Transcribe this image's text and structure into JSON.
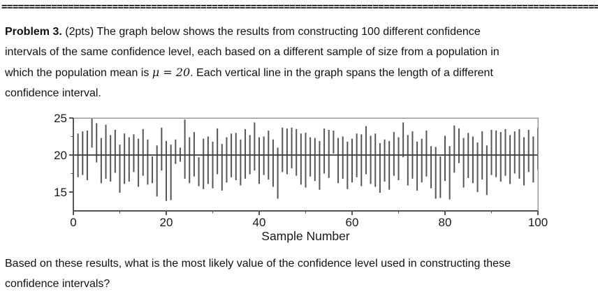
{
  "document": {
    "divider": "==============================================================================================================",
    "problem": {
      "label": "Problem 3.",
      "text_before_mu": " (2pts) The graph below shows the results from constructing 100 different confidence\nintervals of the same confidence level, each based on a different sample of size from a population in\nwhich the population mean is ",
      "mu_expression": "μ = 20",
      "text_after_mu": ". Each vertical line in the graph spans the length of a different\nconfidence interval.",
      "points": "2pts"
    },
    "question": "Based on these results, what is the most likely value of the confidence level used in constructing these\nconfidence intervals?"
  },
  "chart_data": {
    "type": "scatter",
    "mark": "vertical-interval",
    "title": "",
    "xlabel": "Sample Number",
    "ylabel": "",
    "xlim": [
      0,
      100
    ],
    "ylim": [
      12.45,
      25
    ],
    "xticks": [
      0,
      20,
      40,
      60,
      80,
      100
    ],
    "xticks_minor": [
      10,
      30,
      50,
      70,
      90
    ],
    "yticks": [
      15,
      20,
      25
    ],
    "yticks_minor": [
      17.5,
      22.5
    ],
    "grid": false,
    "legend": false,
    "mean_line": 20,
    "n_intervals": 100,
    "colors": {
      "interval": "#555555",
      "mean_line": "#3a3a3a",
      "frame": "#999999",
      "axis": "#555555",
      "text": "#1a1a1a"
    },
    "intervals": [
      [
        17.0,
        22.9
      ],
      [
        17.3,
        23.2
      ],
      [
        16.6,
        23.3
      ],
      [
        21.0,
        25.0
      ],
      [
        19.0,
        24.3
      ],
      [
        16.2,
        22.3
      ],
      [
        16.8,
        24.1
      ],
      [
        16.4,
        22.7
      ],
      [
        17.6,
        23.4
      ],
      [
        14.9,
        21.4
      ],
      [
        16.1,
        22.9
      ],
      [
        16.4,
        22.4
      ],
      [
        17.7,
        22.8
      ],
      [
        15.7,
        22.2
      ],
      [
        17.2,
        23.5
      ],
      [
        16.0,
        22.1
      ],
      [
        16.2,
        19.8
      ],
      [
        14.4,
        21.3
      ],
      [
        17.9,
        23.7
      ],
      [
        13.8,
        21.9
      ],
      [
        13.9,
        21.4
      ],
      [
        18.8,
        22.1
      ],
      [
        19.1,
        21.0
      ],
      [
        16.8,
        24.8
      ],
      [
        16.2,
        22.4
      ],
      [
        17.1,
        23.1
      ],
      [
        15.8,
        19.7
      ],
      [
        15.4,
        22.2
      ],
      [
        16.1,
        22.5
      ],
      [
        15.5,
        21.8
      ],
      [
        17.4,
        23.6
      ],
      [
        15.2,
        21.5
      ],
      [
        16.3,
        22.4
      ],
      [
        17.0,
        22.9
      ],
      [
        16.6,
        23.0
      ],
      [
        15.9,
        22.1
      ],
      [
        16.8,
        23.5
      ],
      [
        17.4,
        22.7
      ],
      [
        17.9,
        24.4
      ],
      [
        16.1,
        22.4
      ],
      [
        17.3,
        22.5
      ],
      [
        16.7,
        23.3
      ],
      [
        15.7,
        22.1
      ],
      [
        14.1,
        21.0
      ],
      [
        17.7,
        23.7
      ],
      [
        17.4,
        23.6
      ],
      [
        18.2,
        23.7
      ],
      [
        17.2,
        23.5
      ],
      [
        16.0,
        22.9
      ],
      [
        15.6,
        23.0
      ],
      [
        17.1,
        22.4
      ],
      [
        16.5,
        22.3
      ],
      [
        15.3,
        21.9
      ],
      [
        17.5,
        23.6
      ],
      [
        16.9,
        23.4
      ],
      [
        20.2,
        23.3
      ],
      [
        16.2,
        22.3
      ],
      [
        16.8,
        22.5
      ],
      [
        15.4,
        21.8
      ],
      [
        16.3,
        22.2
      ],
      [
        17.0,
        22.9
      ],
      [
        15.8,
        22.8
      ],
      [
        17.4,
        23.9
      ],
      [
        16.1,
        22.6
      ],
      [
        15.7,
        22.9
      ],
      [
        14.9,
        21.6
      ],
      [
        16.4,
        22.1
      ],
      [
        15.3,
        21.9
      ],
      [
        17.2,
        23.1
      ],
      [
        16.6,
        22.4
      ],
      [
        19.7,
        24.4
      ],
      [
        15.9,
        22.7
      ],
      [
        16.8,
        23.2
      ],
      [
        15.2,
        21.8
      ],
      [
        16.3,
        22.2
      ],
      [
        17.1,
        23.3
      ],
      [
        15.5,
        21.2
      ],
      [
        14.1,
        21.1
      ],
      [
        14.2,
        19.8
      ],
      [
        16.5,
        22.6
      ],
      [
        14.0,
        21.2
      ],
      [
        17.6,
        24.0
      ],
      [
        18.9,
        23.6
      ],
      [
        15.6,
        22.3
      ],
      [
        16.9,
        23.0
      ],
      [
        16.2,
        22.5
      ],
      [
        15.0,
        21.7
      ],
      [
        16.7,
        23.2
      ],
      [
        14.6,
        21.3
      ],
      [
        17.3,
        23.4
      ],
      [
        17.0,
        23.3
      ],
      [
        16.4,
        23.1
      ],
      [
        17.2,
        23.5
      ],
      [
        16.1,
        22.7
      ],
      [
        17.5,
        23.2
      ],
      [
        16.8,
        23.5
      ],
      [
        15.9,
        22.4
      ],
      [
        17.7,
        23.4
      ],
      [
        16.3,
        22.5
      ],
      [
        18.0,
        23.7
      ]
    ]
  }
}
